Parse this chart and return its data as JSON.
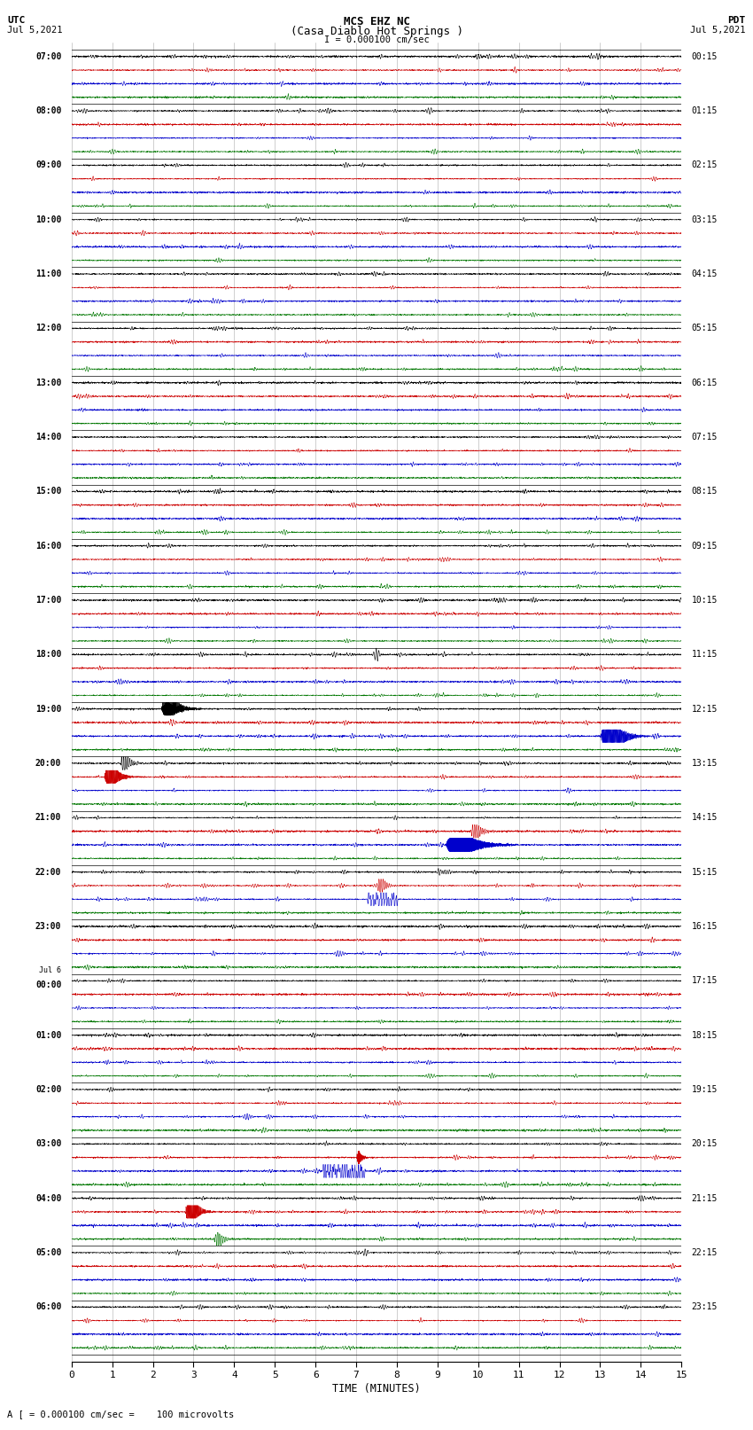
{
  "title_line1": "MCS EHZ NC",
  "title_line2": "(Casa Diablo Hot Springs )",
  "scale_text": "I = 0.000100 cm/sec",
  "footer_text": "A [ = 0.000100 cm/sec =    100 microvolts",
  "xlabel": "TIME (MINUTES)",
  "utc_label1": "UTC",
  "utc_label2": "Jul 5,2021",
  "pdt_label1": "PDT",
  "pdt_label2": "Jul 5,2021",
  "left_times": [
    "07:00",
    "08:00",
    "09:00",
    "10:00",
    "11:00",
    "12:00",
    "13:00",
    "14:00",
    "15:00",
    "16:00",
    "17:00",
    "18:00",
    "19:00",
    "20:00",
    "21:00",
    "22:00",
    "23:00",
    "Jul 6\n00:00",
    "01:00",
    "02:00",
    "03:00",
    "04:00",
    "05:00",
    "06:00"
  ],
  "right_times": [
    "00:15",
    "01:15",
    "02:15",
    "03:15",
    "04:15",
    "05:15",
    "06:15",
    "07:15",
    "08:15",
    "09:15",
    "10:15",
    "11:15",
    "12:15",
    "13:15",
    "14:15",
    "15:15",
    "16:15",
    "17:15",
    "18:15",
    "19:15",
    "20:15",
    "21:15",
    "22:15",
    "23:15"
  ],
  "trace_colors": [
    "#000000",
    "#cc0000",
    "#0000cc",
    "#007700"
  ],
  "num_rows": 24,
  "traces_per_row": 4,
  "num_points": 3000,
  "seed": 12345,
  "background_color": "#ffffff",
  "quiet_amp": 0.06,
  "trace_lw": 0.4
}
